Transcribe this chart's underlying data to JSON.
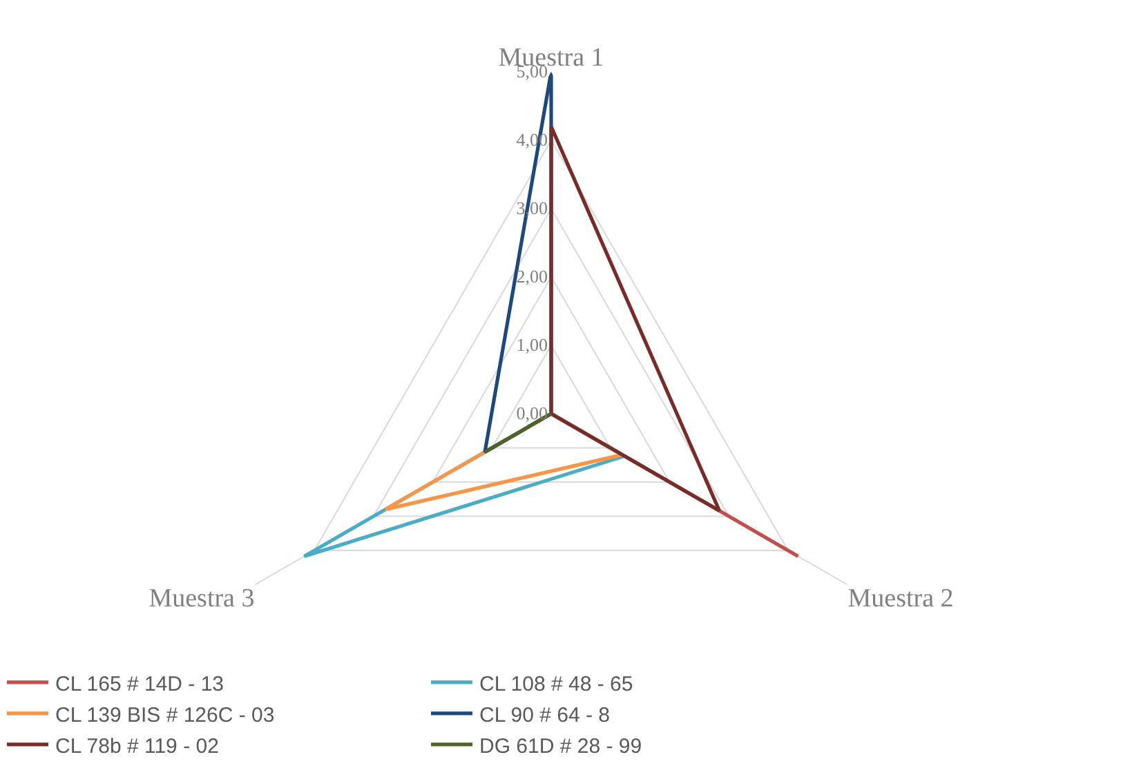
{
  "chart_data": {
    "type": "radar",
    "categories": [
      "Muestra 1",
      "Muestra 2",
      "Muestra 3"
    ],
    "series": [
      {
        "name": "CL 165 # 14D - 13",
        "color": "#c0504d",
        "values": [
          0,
          4.17,
          0
        ]
      },
      {
        "name": "CL 108 # 48 - 65",
        "color": "#4bacc6",
        "values": [
          0,
          1.24,
          4.17
        ]
      },
      {
        "name": "CL 139 BIS # 126C - 03",
        "color": "#f79646",
        "values": [
          0,
          1.2,
          2.8
        ]
      },
      {
        "name": "CL 90 # 64 - 8",
        "color": "#1f497d",
        "values": [
          5,
          0,
          1.12
        ]
      },
      {
        "name": "CL 78b # 119 - 02",
        "color": "#772c2a",
        "values": [
          4.2,
          2.84,
          0
        ]
      },
      {
        "name": "DG 61D # 28 - 99",
        "color": "#4f6228",
        "values": [
          0,
          0,
          1.12
        ]
      }
    ],
    "ylim": [
      0,
      5
    ],
    "yticks": [
      {
        "value": 0,
        "label": "0,00"
      },
      {
        "value": 1,
        "label": "1,00"
      },
      {
        "value": 2,
        "label": "2,00"
      },
      {
        "value": 3,
        "label": "3,00"
      },
      {
        "value": 4,
        "label": "4,00"
      },
      {
        "value": 5,
        "label": "5,00"
      }
    ],
    "grid": true,
    "legend": "bottom",
    "marker": "none",
    "line_style": "solid"
  }
}
